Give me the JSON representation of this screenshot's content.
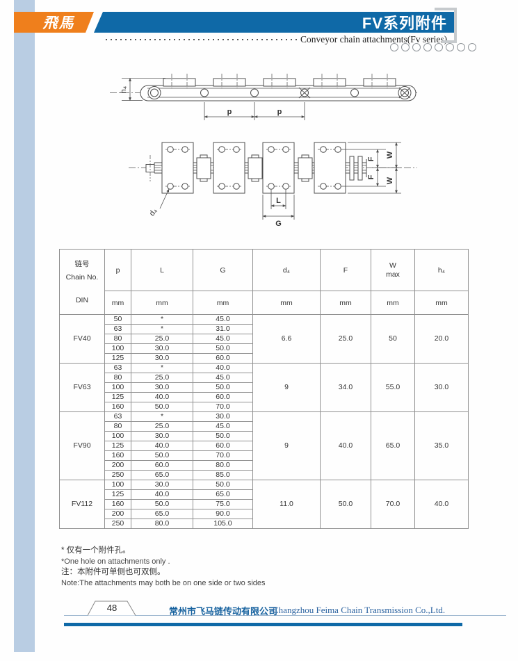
{
  "header": {
    "logo_text": "飛馬",
    "title": "FV系列附件",
    "subtitle": "Conveyor chain attachments(Fv series)",
    "circle_count": 8
  },
  "diagram": {
    "h4": "h₄",
    "p": "p",
    "d4": "d₄",
    "L": "L",
    "G": "G",
    "F": "F",
    "W": "W"
  },
  "table": {
    "header": {
      "col1_line1": "链号",
      "col1_line2": "Chain No.",
      "col1_line3": "DIN",
      "cols": [
        "p",
        "L",
        "G",
        "d₄",
        "F",
        "W",
        "h₄"
      ],
      "w_sub": "max",
      "unit": "mm"
    },
    "groups": [
      {
        "chain_no": "FV40",
        "rows": [
          [
            "50",
            "*",
            "45.0"
          ],
          [
            "63",
            "*",
            "31.0"
          ],
          [
            "80",
            "25.0",
            "45.0"
          ],
          [
            "100",
            "30.0",
            "50.0"
          ],
          [
            "125",
            "30.0",
            "60.0"
          ]
        ],
        "d4": "6.6",
        "F": "25.0",
        "W": "50",
        "h4": "20.0"
      },
      {
        "chain_no": "FV63",
        "rows": [
          [
            "63",
            "*",
            "40.0"
          ],
          [
            "80",
            "25.0",
            "45.0"
          ],
          [
            "100",
            "30.0",
            "50.0"
          ],
          [
            "125",
            "40.0",
            "60.0"
          ],
          [
            "160",
            "50.0",
            "70.0"
          ]
        ],
        "d4": "9",
        "F": "34.0",
        "W": "55.0",
        "h4": "30.0"
      },
      {
        "chain_no": "FV90",
        "rows": [
          [
            "63",
            "*",
            "30.0"
          ],
          [
            "80",
            "25.0",
            "45.0"
          ],
          [
            "100",
            "30.0",
            "50.0"
          ],
          [
            "125",
            "40.0",
            "60.0"
          ],
          [
            "160",
            "50.0",
            "70.0"
          ],
          [
            "200",
            "60.0",
            "80.0"
          ],
          [
            "250",
            "65.0",
            "85.0"
          ]
        ],
        "d4": "9",
        "F": "40.0",
        "W": "65.0",
        "h4": "35.0"
      },
      {
        "chain_no": "FV112",
        "rows": [
          [
            "100",
            "30.0",
            "50.0"
          ],
          [
            "125",
            "40.0",
            "65.0"
          ],
          [
            "160",
            "50.0",
            "75.0"
          ],
          [
            "200",
            "65.0",
            "90.0"
          ],
          [
            "250",
            "80.0",
            "105.0"
          ]
        ],
        "d4": "11.0",
        "F": "50.0",
        "W": "70.0",
        "h4": "40.0"
      }
    ]
  },
  "notes": [
    "* 仅有一个附件孔。",
    "*One hole on attachments only .",
    "注：本附件可单侧也可双侧。",
    "Note:The attachments may both be on one side or two sides"
  ],
  "footer": {
    "page_number": "48",
    "company_cn": "常州市飞马链传动有限公司",
    "company_en": "Changzhou Feima Chain Transmission Co.,Ltd."
  },
  "colors": {
    "accent_orange": "#ef7f1c",
    "accent_blue": "#0f69a7",
    "stripe_blue": "#b9cde3"
  }
}
